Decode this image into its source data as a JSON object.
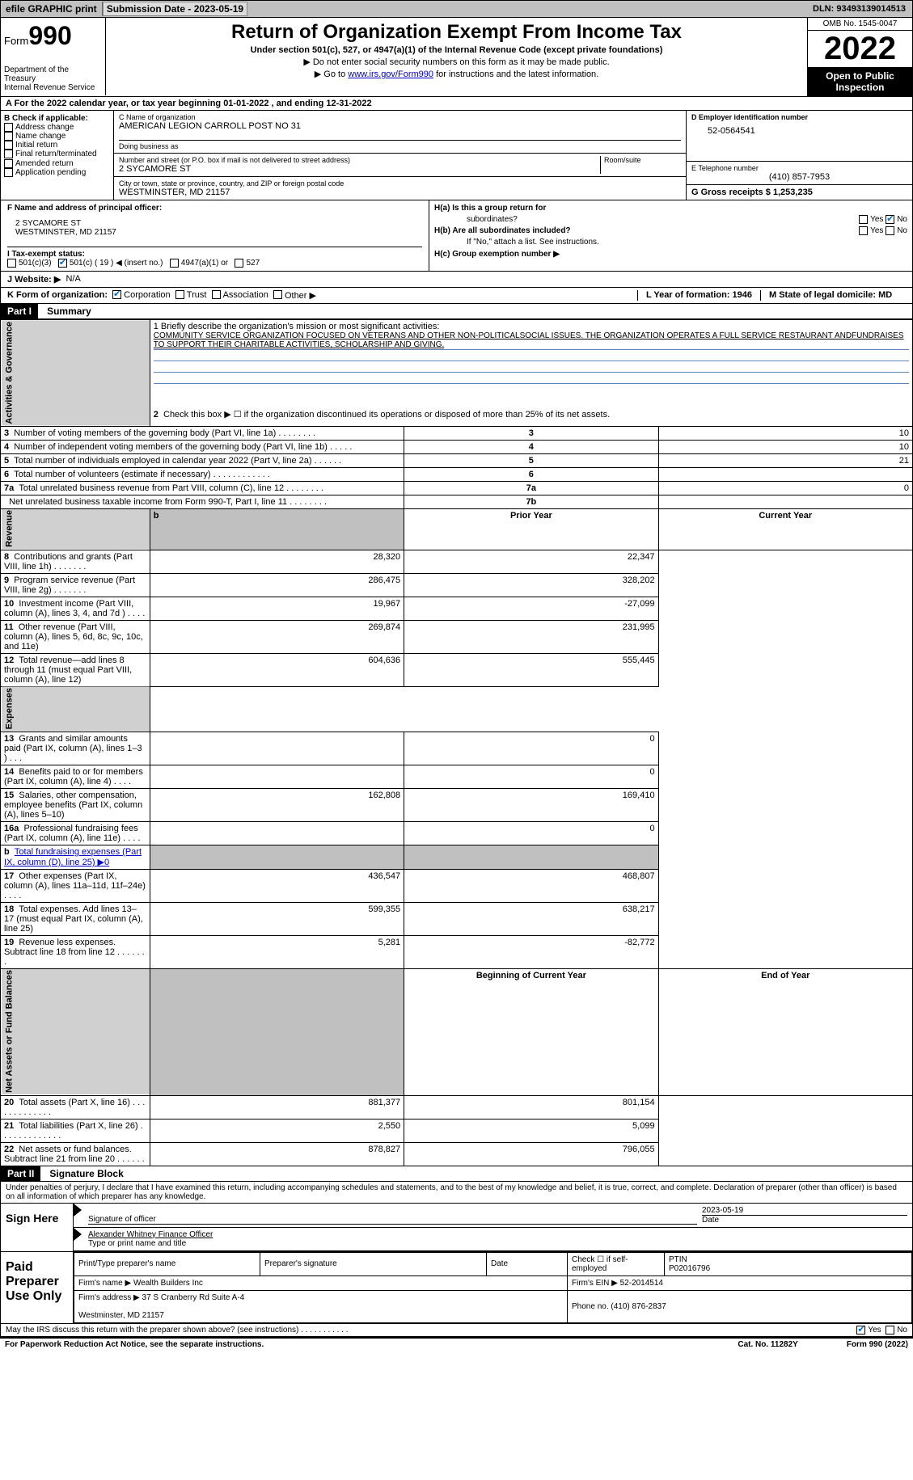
{
  "topbar": {
    "efile": "efile GRAPHIC print",
    "sub_label": "Submission Date - 2023-05-19",
    "dln": "DLN: 93493139014513"
  },
  "header": {
    "form_word": "Form",
    "form_num": "990",
    "dept": "Department of the Treasury\nInternal Revenue Service",
    "title": "Return of Organization Exempt From Income Tax",
    "sub": "Under section 501(c), 527, or 4947(a)(1) of the Internal Revenue Code (except private foundations)",
    "note1": "▶ Do not enter social security numbers on this form as it may be made public.",
    "note2_pre": "▶ Go to ",
    "note2_link": "www.irs.gov/Form990",
    "note2_post": " for instructions and the latest information.",
    "omb": "OMB No. 1545-0047",
    "year": "2022",
    "open": "Open to Public Inspection"
  },
  "sec_a": "A  For the 2022 calendar year, or tax year beginning 01-01-2022    , and ending 12-31-2022",
  "block_b": {
    "b_label": "B Check if applicable:",
    "opts": [
      "Address change",
      "Name change",
      "Initial return",
      "Final return/terminated",
      "Amended return",
      "Application pending"
    ],
    "c_label": "C Name of organization",
    "c_val": "AMERICAN LEGION CARROLL POST NO 31",
    "dba_label": "Doing business as",
    "addr_label": "Number and street (or P.O. box if mail is not delivered to street address)",
    "room_label": "Room/suite",
    "addr_val": "2 SYCAMORE ST",
    "city_label": "City or town, state or province, country, and ZIP or foreign postal code",
    "city_val": "WESTMINSTER, MD  21157",
    "d_label": "D Employer identification number",
    "d_val": "52-0564541",
    "e_label": "E Telephone number",
    "e_val": "(410) 857-7953",
    "g_label": "G Gross receipts $ 1,253,235"
  },
  "row_f": {
    "f_label": "F  Name and address of principal officer:",
    "f_addr": "2 SYCAMORE ST\nWESTMINSTER, MD  21157",
    "ha_l": "H(a)  Is this a group return for",
    "ha_r": "subordinates?",
    "hb_l": "H(b)  Are all subordinates included?",
    "hb_note": "If \"No,\" attach a list. See instructions.",
    "hc": "H(c)  Group exemption number ▶",
    "yes": "Yes",
    "no": "No"
  },
  "tax_row": {
    "i": "I   Tax-exempt status:",
    "o1": "501(c)(3)",
    "o2": "501(c) ( 19 ) ◀ (insert no.)",
    "o3": "4947(a)(1) or",
    "o4": "527",
    "j": "J   Website: ▶",
    "j_val": "N/A"
  },
  "row_k": {
    "k": "K Form of organization:",
    "opts": [
      "Corporation",
      "Trust",
      "Association",
      "Other ▶"
    ],
    "l": "L Year of formation: 1946",
    "m": "M State of legal domicile: MD"
  },
  "part1": {
    "label": "Part I",
    "title": "Summary",
    "mission_label": "1   Briefly describe the organization's mission or most significant activities:",
    "mission": "COMMUNITY SERVICE ORGANIZATION FOCUSED ON VETERANS AND OTHER NON-POLITICALSOCIAL ISSUES. THE ORGANIZATION OPERATES A FULL SERVICE RESTAURANT ANDFUNDRAISES TO SUPPORT THEIR CHARITABLE ACTIVITIES, SCHOLARSHIP AND GIVING.",
    "line2": "Check this box ▶ ☐  if the organization discontinued its operations or disposed of more than 25% of its net assets.",
    "side_ag": "Activities & Governance",
    "side_rev": "Revenue",
    "side_exp": "Expenses",
    "side_na": "Net Assets or Fund Balances",
    "rows_ag": [
      {
        "n": "3",
        "d": "Number of voting members of the governing body (Part VI, line 1a)   .    .    .    .    .    .    .    .",
        "b": "3",
        "v": "10"
      },
      {
        "n": "4",
        "d": "Number of independent voting members of the governing body (Part VI, line 1b)  .    .    .    .    .",
        "b": "4",
        "v": "10"
      },
      {
        "n": "5",
        "d": "Total number of individuals employed in calendar year 2022 (Part V, line 2a)  .    .    .    .    .    .",
        "b": "5",
        "v": "21"
      },
      {
        "n": "6",
        "d": "Total number of volunteers (estimate if necessary)    .    .    .    .    .    .    .    .    .    .    .    .",
        "b": "6",
        "v": ""
      },
      {
        "n": "7a",
        "d": "Total unrelated business revenue from Part VIII, column (C), line 12   .    .    .    .    .    .    .    .",
        "b": "7a",
        "v": "0"
      },
      {
        "n": "",
        "d": "Net unrelated business taxable income from Form 990-T, Part I, line 11  .    .    .    .    .    .    .    .",
        "b": "7b",
        "v": ""
      }
    ],
    "prior_hdr": "Prior Year",
    "curr_hdr": "Current Year",
    "rows_rev": [
      {
        "n": "8",
        "d": "Contributions and grants (Part VIII, line 1h)   .    .    .    .    .    .    .",
        "p": "28,320",
        "c": "22,347"
      },
      {
        "n": "9",
        "d": "Program service revenue (Part VIII, line 2g)   .    .    .    .    .    .    .",
        "p": "286,475",
        "c": "328,202"
      },
      {
        "n": "10",
        "d": "Investment income (Part VIII, column (A), lines 3, 4, and 7d )   .    .    .    .",
        "p": "19,967",
        "c": "-27,099"
      },
      {
        "n": "11",
        "d": "Other revenue (Part VIII, column (A), lines 5, 6d, 8c, 9c, 10c, and 11e)",
        "p": "269,874",
        "c": "231,995"
      },
      {
        "n": "12",
        "d": "Total revenue—add lines 8 through 11 (must equal Part VIII, column (A), line 12)",
        "p": "604,636",
        "c": "555,445"
      }
    ],
    "rows_exp": [
      {
        "n": "13",
        "d": "Grants and similar amounts paid (Part IX, column (A), lines 1–3 )  .    .    .",
        "p": "",
        "c": "0"
      },
      {
        "n": "14",
        "d": "Benefits paid to or for members (Part IX, column (A), line 4)  .    .    .    .",
        "p": "",
        "c": "0"
      },
      {
        "n": "15",
        "d": "Salaries, other compensation, employee benefits (Part IX, column (A), lines 5–10)",
        "p": "162,808",
        "c": "169,410"
      },
      {
        "n": "16a",
        "d": "Professional fundraising fees (Part IX, column (A), line 11e)   .    .    .    .",
        "p": "",
        "c": "0"
      },
      {
        "n": "b",
        "d": "Total fundraising expenses (Part IX, column (D), line 25) ▶0",
        "p": "GREY",
        "c": "GREY"
      },
      {
        "n": "17",
        "d": "Other expenses (Part IX, column (A), lines 11a–11d, 11f–24e)   .    .    .    .",
        "p": "436,547",
        "c": "468,807"
      },
      {
        "n": "18",
        "d": "Total expenses. Add lines 13–17 (must equal Part IX, column (A), line 25)",
        "p": "599,355",
        "c": "638,217"
      },
      {
        "n": "19",
        "d": "Revenue less expenses. Subtract line 18 from line 12  .    .    .    .    .    .    .",
        "p": "5,281",
        "c": "-82,772"
      }
    ],
    "beg_hdr": "Beginning of Current Year",
    "end_hdr": "End of Year",
    "rows_na": [
      {
        "n": "20",
        "d": "Total assets (Part X, line 16)  .    .    .    .    .    .    .    .    .    .    .    .    .",
        "p": "881,377",
        "c": "801,154"
      },
      {
        "n": "21",
        "d": "Total liabilities (Part X, line 26)  .    .    .    .    .    .    .    .    .    .    .    .    .",
        "p": "2,550",
        "c": "5,099"
      },
      {
        "n": "22",
        "d": "Net assets or fund balances. Subtract line 21 from line 20  .    .    .    .    .    .",
        "p": "878,827",
        "c": "796,055"
      }
    ]
  },
  "part2": {
    "label": "Part II",
    "title": "Signature Block",
    "decl": "Under penalties of perjury, I declare that I have examined this return, including accompanying schedules and statements, and to the best of my knowledge and belief, it is true, correct, and complete. Declaration of preparer (other than officer) is based on all information of which preparer has any knowledge.",
    "sign_here": "Sign Here",
    "sig_officer": "Signature of officer",
    "sig_date": "2023-05-19",
    "sig_date_label": "Date",
    "officer_name": "Alexander Whitney  Finance Officer",
    "officer_name_label": "Type or print name and title",
    "paid_prep": "Paid Preparer Use Only",
    "prep_name_label": "Print/Type preparer's name",
    "prep_sig_label": "Preparer's signature",
    "prep_date_label": "Date",
    "prep_check": "Check ☐ if self-employed",
    "ptin_label": "PTIN",
    "ptin": "P02016796",
    "firm_name_label": "Firm's name      ▶",
    "firm_name": "Wealth Builders Inc",
    "firm_ein_label": "Firm's EIN ▶",
    "firm_ein": "52-2014514",
    "firm_addr_label": "Firm's address ▶",
    "firm_addr": "37 S Cranberry Rd Suite A-4\n\nWestminster, MD  21157",
    "phone_label": "Phone no.",
    "phone": "(410) 876-2837"
  },
  "footer": {
    "discuss": "May the IRS discuss this return with the preparer shown above? (see instructions)   .    .    .    .    .    .    .    .    .    .    .",
    "yes": "Yes",
    "no": "No",
    "paperwork": "For Paperwork Reduction Act Notice, see the separate instructions.",
    "cat": "Cat. No. 11282Y",
    "formref": "Form 990 (2022)"
  }
}
